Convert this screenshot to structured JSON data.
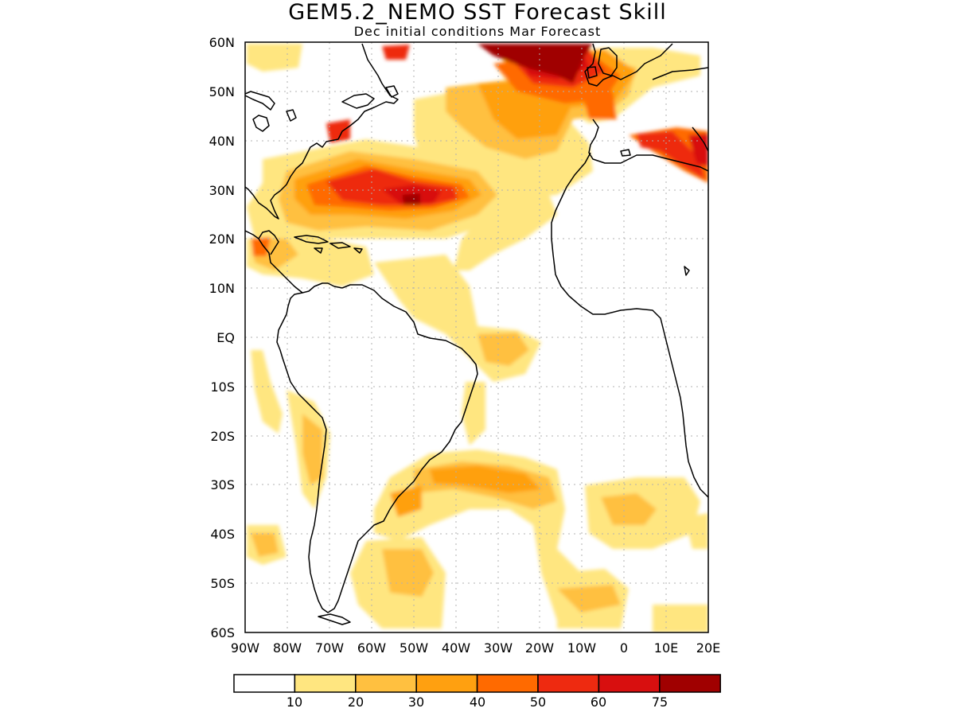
{
  "title": "GEM5.2_NEMO SST Forecast Skill",
  "subtitle": "Dec initial conditions  Mar Forecast",
  "map": {
    "lat_range": [
      -60,
      60
    ],
    "lon_range": [
      -90,
      20
    ],
    "lat_labels": [
      "60N",
      "50N",
      "40N",
      "30N",
      "20N",
      "10N",
      "EQ",
      "10S",
      "20S",
      "30S",
      "40S",
      "50S",
      "60S"
    ],
    "lon_labels": [
      "90W",
      "80W",
      "70W",
      "60W",
      "50W",
      "40W",
      "30W",
      "20W",
      "10W",
      "0",
      "10E",
      "20E"
    ],
    "grid": "dotted"
  },
  "colorbar": {
    "colors": [
      "#ffffff",
      "#ffe680",
      "#ffc040",
      "#ffa010",
      "#ff6a00",
      "#ee2a10",
      "#d80f0f",
      "#a00000"
    ],
    "tick_labels": [
      "10",
      "20",
      "30",
      "40",
      "50",
      "60",
      "75"
    ]
  }
}
